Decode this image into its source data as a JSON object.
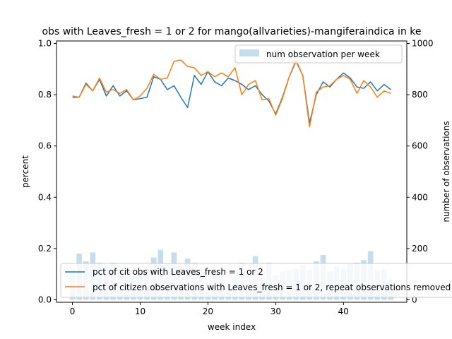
{
  "chart_data": {
    "type": "line",
    "title": "obs with Leaves_fresh = 1 or 2 for mango(allvarieties)-mangiferaindica in ke",
    "xlabel": "week index",
    "ylabel": "percent",
    "y2label": "number of observations",
    "xlim": [
      -2.35,
      49.35
    ],
    "ylim": [
      0,
      1.0
    ],
    "y2lim": [
      0,
      1000
    ],
    "xticks": [
      "0",
      "10",
      "20",
      "30",
      "40"
    ],
    "yticks": [
      "0.0",
      "0.2",
      "0.4",
      "0.6",
      "0.8",
      "1.0"
    ],
    "y2ticks": [
      "0",
      "200",
      "400",
      "600",
      "800",
      "1000"
    ],
    "x": [
      0,
      1,
      2,
      3,
      4,
      5,
      6,
      7,
      8,
      9,
      10,
      11,
      12,
      13,
      14,
      15,
      16,
      17,
      18,
      19,
      20,
      21,
      22,
      23,
      24,
      25,
      26,
      27,
      28,
      29,
      30,
      31,
      32,
      33,
      34,
      35,
      36,
      37,
      38,
      39,
      40,
      41,
      42,
      43,
      44,
      45,
      46,
      47
    ],
    "series": [
      {
        "name": "pct of cit obs with Leaves_fresh = 1 or 2",
        "color": "#1f77b4",
        "values": [
          0.79,
          0.79,
          0.845,
          0.815,
          0.86,
          0.795,
          0.835,
          0.795,
          0.815,
          0.78,
          0.785,
          0.79,
          0.87,
          0.86,
          0.82,
          0.835,
          0.79,
          0.75,
          0.875,
          0.84,
          0.89,
          0.85,
          0.835,
          0.865,
          0.855,
          0.84,
          0.82,
          0.835,
          0.8,
          0.775,
          0.725,
          0.79,
          0.87,
          0.93,
          0.875,
          0.69,
          0.8,
          0.85,
          0.83,
          0.86,
          0.885,
          0.865,
          0.83,
          0.825,
          0.85,
          0.815,
          0.84,
          0.82
        ]
      },
      {
        "name": "pct of citizen observations with Leaves_fresh = 1 or 2, repeat observations removed",
        "color": "#ff7f0e",
        "values": [
          0.795,
          0.79,
          0.84,
          0.815,
          0.865,
          0.81,
          0.82,
          0.805,
          0.82,
          0.78,
          0.795,
          0.825,
          0.88,
          0.86,
          0.865,
          0.93,
          0.935,
          0.91,
          0.905,
          0.875,
          0.89,
          0.87,
          0.885,
          0.87,
          0.905,
          0.8,
          0.84,
          0.855,
          0.78,
          0.785,
          0.72,
          0.785,
          0.87,
          0.935,
          0.875,
          0.675,
          0.81,
          0.83,
          0.835,
          0.86,
          0.875,
          0.86,
          0.805,
          0.855,
          0.83,
          0.79,
          0.815,
          0.805
        ]
      }
    ],
    "bar_series": {
      "name": "num observation per week",
      "color": "#1f77b4",
      "alpha": 0.25,
      "values": [
        120,
        180,
        150,
        185,
        145,
        135,
        145,
        120,
        100,
        95,
        100,
        120,
        165,
        195,
        140,
        185,
        130,
        160,
        145,
        100,
        65,
        100,
        80,
        60,
        85,
        145,
        100,
        170,
        85,
        145,
        95,
        110,
        115,
        120,
        135,
        115,
        150,
        175,
        110,
        130,
        120,
        140,
        145,
        155,
        190,
        115,
        120,
        80
      ]
    },
    "legend_upper_position": "upper-right",
    "legend_lower_position": "lower-left"
  }
}
